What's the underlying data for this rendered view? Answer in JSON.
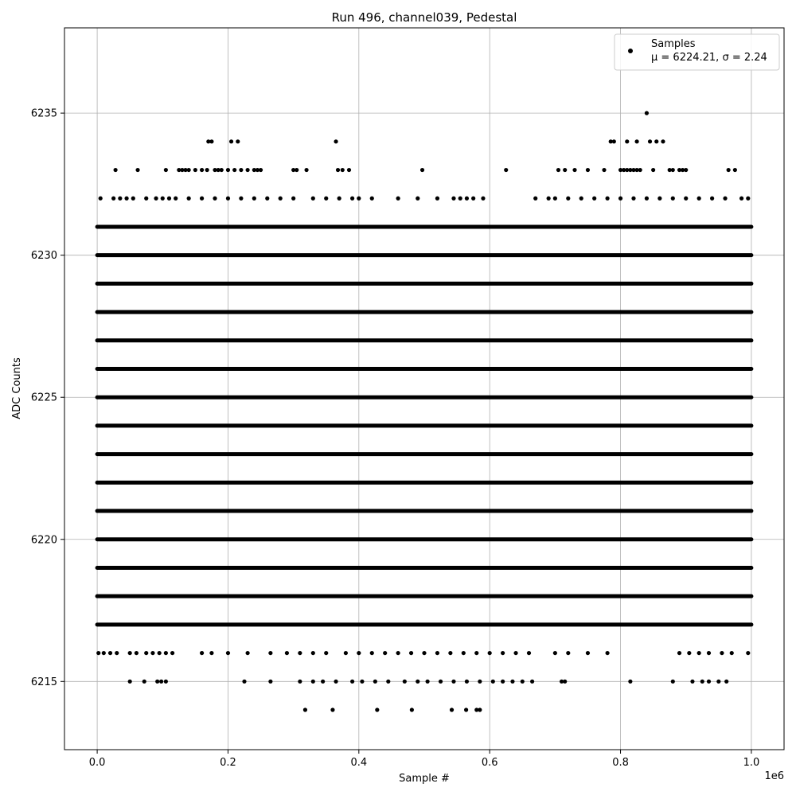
{
  "chart_data": {
    "type": "scatter",
    "title": "Run 496, channel039, Pedestal",
    "xlabel": "Sample #",
    "ylabel": "ADC Counts",
    "x_offset_label": "1e6",
    "xlim": [
      -50000,
      1050000
    ],
    "ylim": [
      6212.6,
      6238.0
    ],
    "x_ticks": [
      0,
      200000,
      400000,
      600000,
      800000,
      1000000
    ],
    "x_tick_labels": [
      "0.0",
      "0.2",
      "0.4",
      "0.6",
      "0.8",
      "1.0"
    ],
    "y_ticks": [
      6215,
      6220,
      6225,
      6230,
      6235
    ],
    "y_tick_labels": [
      "6215",
      "6220",
      "6225",
      "6230",
      "6235"
    ],
    "grid": true,
    "legend": {
      "placement": "upper right",
      "entries": [
        "Samples",
        "μ = 6224.21, σ = 2.24"
      ]
    },
    "series": [
      {
        "name": "Samples",
        "color": "#000000",
        "marker": "circle",
        "x_range": [
          0,
          1000000
        ],
        "mean": 6224.21,
        "sigma": 2.24,
        "dense_levels": [
          6217,
          6218,
          6219,
          6220,
          6221,
          6222,
          6223,
          6224,
          6225,
          6226,
          6227,
          6228,
          6229,
          6230,
          6231
        ],
        "sparse_points": {
          "6235": [
            840000
          ],
          "6234": [
            170000,
            175000,
            205000,
            215000,
            365000,
            785000,
            790000,
            810000,
            825000,
            845000,
            855000,
            865000
          ],
          "6233": [
            28000,
            62000,
            105000,
            125000,
            130000,
            135000,
            140000,
            150000,
            160000,
            168000,
            180000,
            185000,
            190000,
            200000,
            210000,
            220000,
            230000,
            240000,
            245000,
            250000,
            300000,
            305000,
            320000,
            368000,
            375000,
            385000,
            497000,
            625000,
            705000,
            715000,
            730000,
            750000,
            775000,
            800000,
            805000,
            810000,
            815000,
            820000,
            825000,
            830000,
            850000,
            875000,
            880000,
            890000,
            895000,
            900000,
            965000,
            975000
          ],
          "6232": [
            5000,
            25000,
            35000,
            45000,
            55000,
            75000,
            90000,
            100000,
            110000,
            120000,
            140000,
            160000,
            180000,
            200000,
            220000,
            240000,
            260000,
            280000,
            300000,
            330000,
            350000,
            370000,
            390000,
            400000,
            420000,
            460000,
            490000,
            520000,
            545000,
            555000,
            565000,
            575000,
            590000,
            670000,
            690000,
            700000,
            720000,
            740000,
            760000,
            780000,
            800000,
            820000,
            840000,
            860000,
            880000,
            900000,
            920000,
            940000,
            960000,
            985000,
            995000
          ],
          "6216": [
            2000,
            10000,
            20000,
            30000,
            50000,
            60000,
            75000,
            85000,
            95000,
            105000,
            115000,
            160000,
            175000,
            200000,
            230000,
            265000,
            290000,
            310000,
            330000,
            350000,
            380000,
            400000,
            420000,
            440000,
            460000,
            480000,
            500000,
            520000,
            540000,
            560000,
            580000,
            600000,
            620000,
            640000,
            660000,
            700000,
            720000,
            750000,
            780000,
            890000,
            905000,
            920000,
            935000,
            955000,
            970000,
            995000
          ],
          "6215": [
            50000,
            72000,
            92000,
            98000,
            105000,
            225000,
            265000,
            310000,
            330000,
            345000,
            365000,
            390000,
            405000,
            425000,
            445000,
            470000,
            490000,
            505000,
            525000,
            545000,
            565000,
            585000,
            605000,
            620000,
            635000,
            650000,
            665000,
            710000,
            715000,
            815000,
            880000,
            910000,
            925000,
            935000,
            950000,
            962000
          ],
          "6214": [
            318000,
            360000,
            428000,
            481000,
            542000,
            564000,
            580000,
            585000
          ]
        }
      }
    ]
  }
}
